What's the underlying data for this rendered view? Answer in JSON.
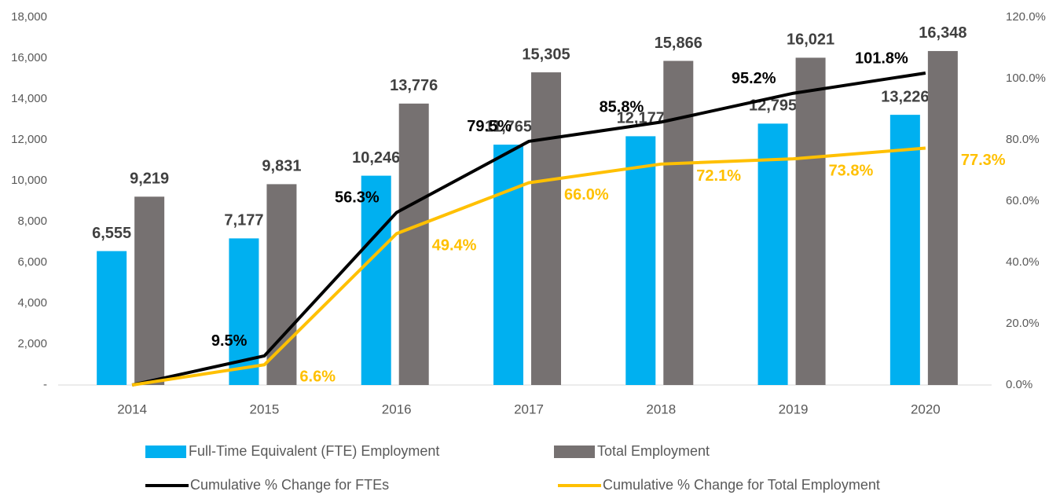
{
  "chart_data": {
    "type": "bar",
    "categories": [
      "2014",
      "2015",
      "2016",
      "2017",
      "2018",
      "2019",
      "2020"
    ],
    "series": [
      {
        "name": "Full-Time Equivalent (FTE) Employment",
        "type": "bar",
        "color": "#00b0f0",
        "values": [
          6555,
          7177,
          10246,
          11765,
          12177,
          12795,
          13226
        ],
        "value_labels": [
          "6,555",
          "7,177",
          "10,246",
          "11,765",
          "12,177",
          "12,795",
          "13,226"
        ]
      },
      {
        "name": "Total Employment",
        "type": "bar",
        "color": "#767171",
        "values": [
          9219,
          9831,
          13776,
          15305,
          15866,
          16021,
          16348
        ],
        "value_labels": [
          "9,219",
          "9,831",
          "13,776",
          "15,305",
          "15,866",
          "16,021",
          "16,348"
        ]
      },
      {
        "name": "Cumulative % Change for FTEs",
        "type": "line",
        "axis": "y2",
        "color": "#000000",
        "values": [
          0,
          9.5,
          56.3,
          79.5,
          85.8,
          95.2,
          101.8
        ],
        "value_labels": [
          null,
          "9.5%",
          "56.3%",
          "79.5%",
          "85.8%",
          "95.2%",
          "101.8%"
        ]
      },
      {
        "name": "Cumulative % Change for Total Employment",
        "type": "line",
        "axis": "y2",
        "color": "#ffc000",
        "values": [
          0,
          6.6,
          49.4,
          66.0,
          72.1,
          73.8,
          77.3
        ],
        "value_labels": [
          null,
          "6.6%",
          "49.4%",
          "66.0%",
          "72.1%",
          "73.8%",
          "77.3%"
        ]
      }
    ],
    "ylim": [
      0,
      18000
    ],
    "yticks": [
      {
        "value": 0,
        "label": "-"
      },
      {
        "value": 2000,
        "label": "2,000"
      },
      {
        "value": 4000,
        "label": "4,000"
      },
      {
        "value": 6000,
        "label": "6,000"
      },
      {
        "value": 8000,
        "label": "8,000"
      },
      {
        "value": 10000,
        "label": "10,000"
      },
      {
        "value": 12000,
        "label": "12,000"
      },
      {
        "value": 14000,
        "label": "14,000"
      },
      {
        "value": 16000,
        "label": "16,000"
      },
      {
        "value": 18000,
        "label": "18,000"
      }
    ],
    "y2lim": [
      0,
      120
    ],
    "y2ticks": [
      {
        "value": 0,
        "label": "0.0%"
      },
      {
        "value": 20,
        "label": "20.0%"
      },
      {
        "value": 40,
        "label": "40.0%"
      },
      {
        "value": 60,
        "label": "60.0%"
      },
      {
        "value": 80,
        "label": "80.0%"
      },
      {
        "value": 100,
        "label": "100.0%"
      },
      {
        "value": 120,
        "label": "120.0%"
      }
    ],
    "grid": false,
    "legend": "bottom"
  }
}
